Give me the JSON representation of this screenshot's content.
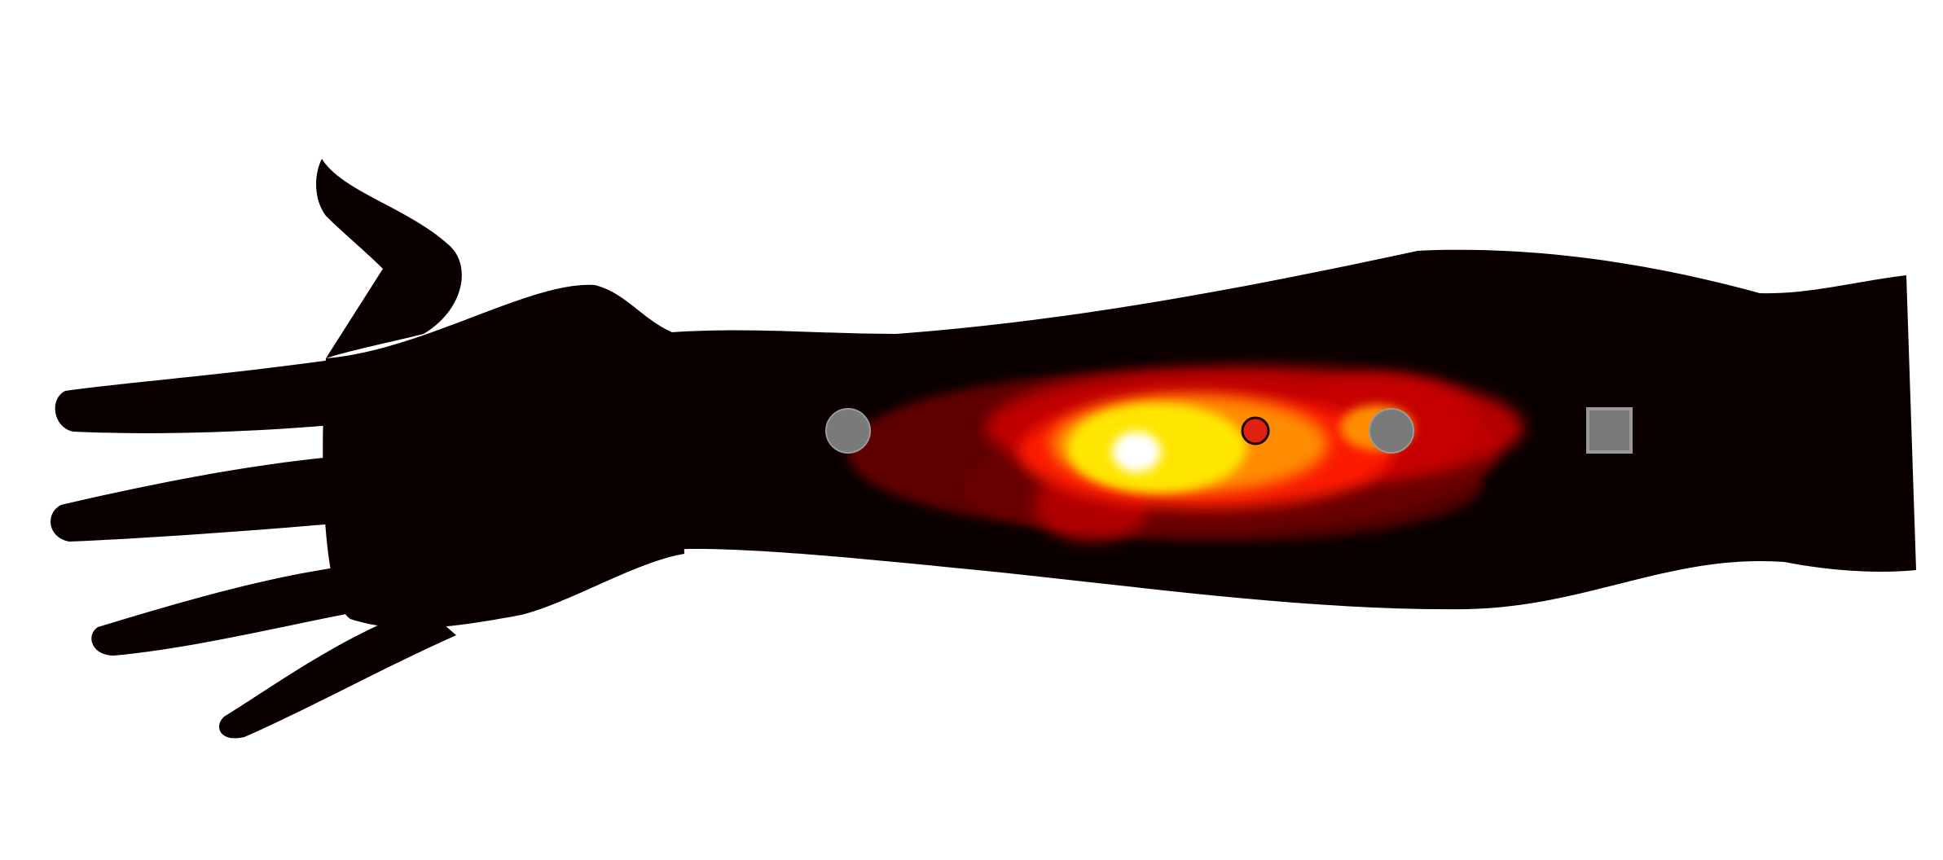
{
  "colors": {
    "background": "#ffffff",
    "silhouette": "#0a0000",
    "heat_dark": "#6e0000",
    "heat_red": "#c80000",
    "heat_bright_red": "#ff1a00",
    "heat_orange": "#ff8c00",
    "heat_yellow": "#ffe600",
    "heat_white": "#ffffff",
    "marker_gray": "#7a7a7a",
    "marker_outline": "#9a9a9a",
    "focus_marker_fill": "#e02010",
    "focus_marker_outline": "#1a0000"
  },
  "figure": {
    "silhouette_name": "forearm-and-hand",
    "markers": [
      {
        "name": "gray-circle-marker-left",
        "shape": "circle"
      },
      {
        "name": "focus-marker",
        "shape": "circle"
      },
      {
        "name": "gray-circle-marker-right",
        "shape": "circle"
      },
      {
        "name": "gray-square-marker",
        "shape": "square"
      }
    ]
  }
}
